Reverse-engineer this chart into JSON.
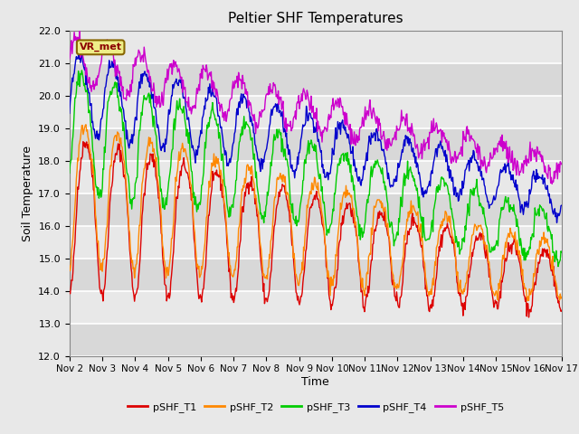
{
  "title": "Peltier SHF Temperatures",
  "xlabel": "Time",
  "ylabel": "Soil Temperature",
  "ylim": [
    12.0,
    22.0
  ],
  "yticks": [
    12.0,
    13.0,
    14.0,
    15.0,
    16.0,
    17.0,
    18.0,
    19.0,
    20.0,
    21.0,
    22.0
  ],
  "xtick_labels": [
    "Nov 2",
    "Nov 3",
    "Nov 4",
    "Nov 5",
    "Nov 6",
    "Nov 7",
    "Nov 8",
    "Nov 9",
    "Nov 10",
    "Nov 11",
    "Nov 12",
    "Nov 13",
    "Nov 14",
    "Nov 15",
    "Nov 16",
    "Nov 17"
  ],
  "colors": {
    "T1": "#dd0000",
    "T2": "#ff8800",
    "T3": "#00cc00",
    "T4": "#0000cc",
    "T5": "#cc00cc"
  },
  "legend_labels": [
    "pSHF_T1",
    "pSHF_T2",
    "pSHF_T3",
    "pSHF_T4",
    "pSHF_T5"
  ],
  "annotation_text": "VR_met",
  "bg_color": "#e8e8e8",
  "plot_bg_color": "#e8e8e8",
  "grid_color": "#ffffff",
  "linewidth": 1.0
}
